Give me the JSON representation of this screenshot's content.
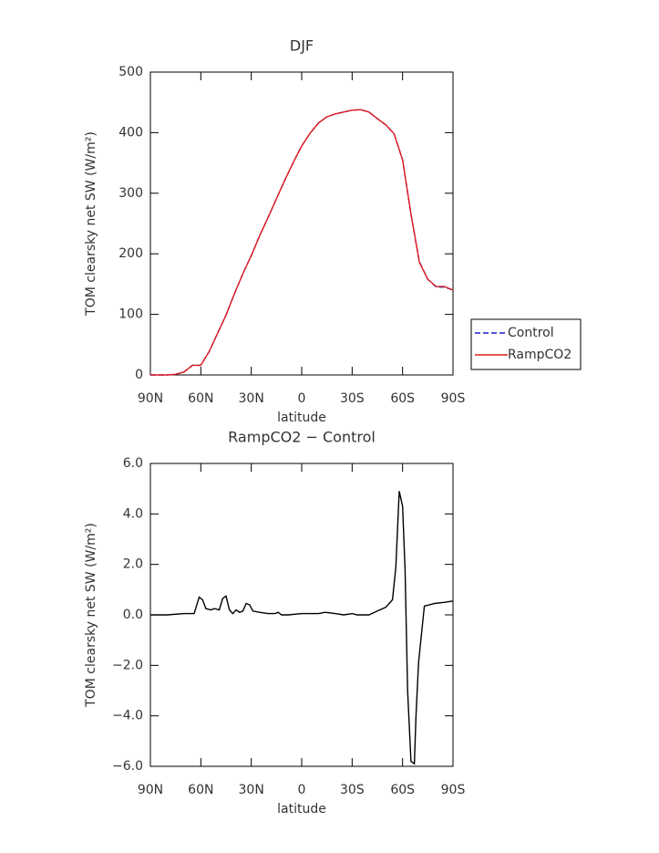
{
  "chart_data": [
    {
      "type": "line",
      "title": "DJF",
      "xlabel": "latitude",
      "ylabel": "TOM clearsky net SW (W/m²)",
      "x": [
        90,
        85,
        80,
        75,
        70,
        65,
        60,
        55,
        50,
        45,
        40,
        35,
        30,
        25,
        20,
        15,
        10,
        5,
        0,
        -5,
        -10,
        -15,
        -20,
        -25,
        -30,
        -35,
        -40,
        -45,
        -50,
        -55,
        -60,
        -65,
        -70,
        -75,
        -80,
        -85,
        -90
      ],
      "series": [
        {
          "name": "Control",
          "color": "#1f1fcc",
          "linestyle": "dashed",
          "values": [
            0,
            0,
            0,
            1,
            5,
            16,
            16,
            39,
            69,
            99,
            134,
            167,
            197,
            230,
            260,
            291,
            322,
            351,
            378,
            399,
            416,
            426,
            431,
            434,
            437,
            438,
            434,
            423,
            413,
            398,
            355,
            265,
            187,
            158,
            145,
            145,
            140
          ]
        },
        {
          "name": "RampCO2",
          "color": "#e01a1a",
          "linestyle": "solid",
          "values": [
            0,
            0,
            0,
            1,
            5,
            16,
            16,
            39,
            69,
            99,
            134,
            167,
            197,
            230,
            260,
            291,
            322,
            351,
            378,
            399,
            416,
            426,
            431,
            434,
            437,
            438,
            434,
            423,
            413,
            398,
            355,
            266,
            186,
            158,
            146,
            146,
            140
          ]
        }
      ],
      "xlim": [
        90,
        -90
      ],
      "xticks": [
        {
          "value": 90,
          "label": "90N"
        },
        {
          "value": 60,
          "label": "60N"
        },
        {
          "value": 30,
          "label": "30N"
        },
        0,
        {
          "value": -30,
          "label": "30S"
        },
        {
          "value": -60,
          "label": "60S"
        },
        {
          "value": -90,
          "label": "90S"
        }
      ],
      "ylim": [
        0,
        500
      ],
      "yticks": [
        0,
        100,
        200,
        300,
        400,
        500
      ],
      "legend": "right"
    },
    {
      "type": "line",
      "title": "RampCO2 − Control",
      "xlabel": "latitude",
      "ylabel": "TOM clearsky net SW (W/m²)",
      "x": [
        90,
        80,
        70,
        64,
        61,
        59,
        57,
        54,
        52,
        49,
        47,
        45,
        43,
        41,
        39,
        37,
        35,
        33,
        31,
        29,
        25,
        20,
        16,
        14,
        12,
        8,
        0,
        -10,
        -14,
        -20,
        -25,
        -30,
        -33,
        -40,
        -45,
        -50,
        -54,
        -56,
        -58,
        -60,
        -61.5,
        -63,
        -65,
        -67,
        -68,
        -69.5,
        -71,
        -73,
        -76,
        -79,
        -85,
        -90
      ],
      "color": "#000000",
      "values": [
        0,
        0,
        0.05,
        0.05,
        0.7,
        0.6,
        0.25,
        0.2,
        0.25,
        0.2,
        0.65,
        0.75,
        0.2,
        0.05,
        0.2,
        0.1,
        0.15,
        0.45,
        0.4,
        0.15,
        0.1,
        0.05,
        0.05,
        0.1,
        0,
        0,
        0.05,
        0.05,
        0.1,
        0.05,
        0,
        0.05,
        0,
        0,
        0.15,
        0.3,
        0.6,
        1.9,
        4.9,
        4.3,
        1.8,
        -3,
        -5.8,
        -5.9,
        -4,
        -1.9,
        -0.9,
        0.35,
        0.4,
        0.45,
        0.5,
        0.55
      ],
      "xlim": [
        90,
        -90
      ],
      "xticks": [
        {
          "value": 90,
          "label": "90N"
        },
        {
          "value": 60,
          "label": "60N"
        },
        {
          "value": 30,
          "label": "30N"
        },
        0,
        {
          "value": -30,
          "label": "30S"
        },
        {
          "value": -60,
          "label": "60S"
        },
        {
          "value": -90,
          "label": "90S"
        }
      ],
      "ylim": [
        -6,
        6
      ],
      "yticks": [
        {
          "value": -6,
          "label": "−6.0"
        },
        {
          "value": -4,
          "label": "−4.0"
        },
        {
          "value": -2,
          "label": "−2.0"
        },
        {
          "value": 0,
          "label": "0.0"
        },
        {
          "value": 2,
          "label": "2.0"
        },
        {
          "value": 4,
          "label": "4.0"
        },
        {
          "value": 6,
          "label": "6.0"
        }
      ]
    }
  ]
}
